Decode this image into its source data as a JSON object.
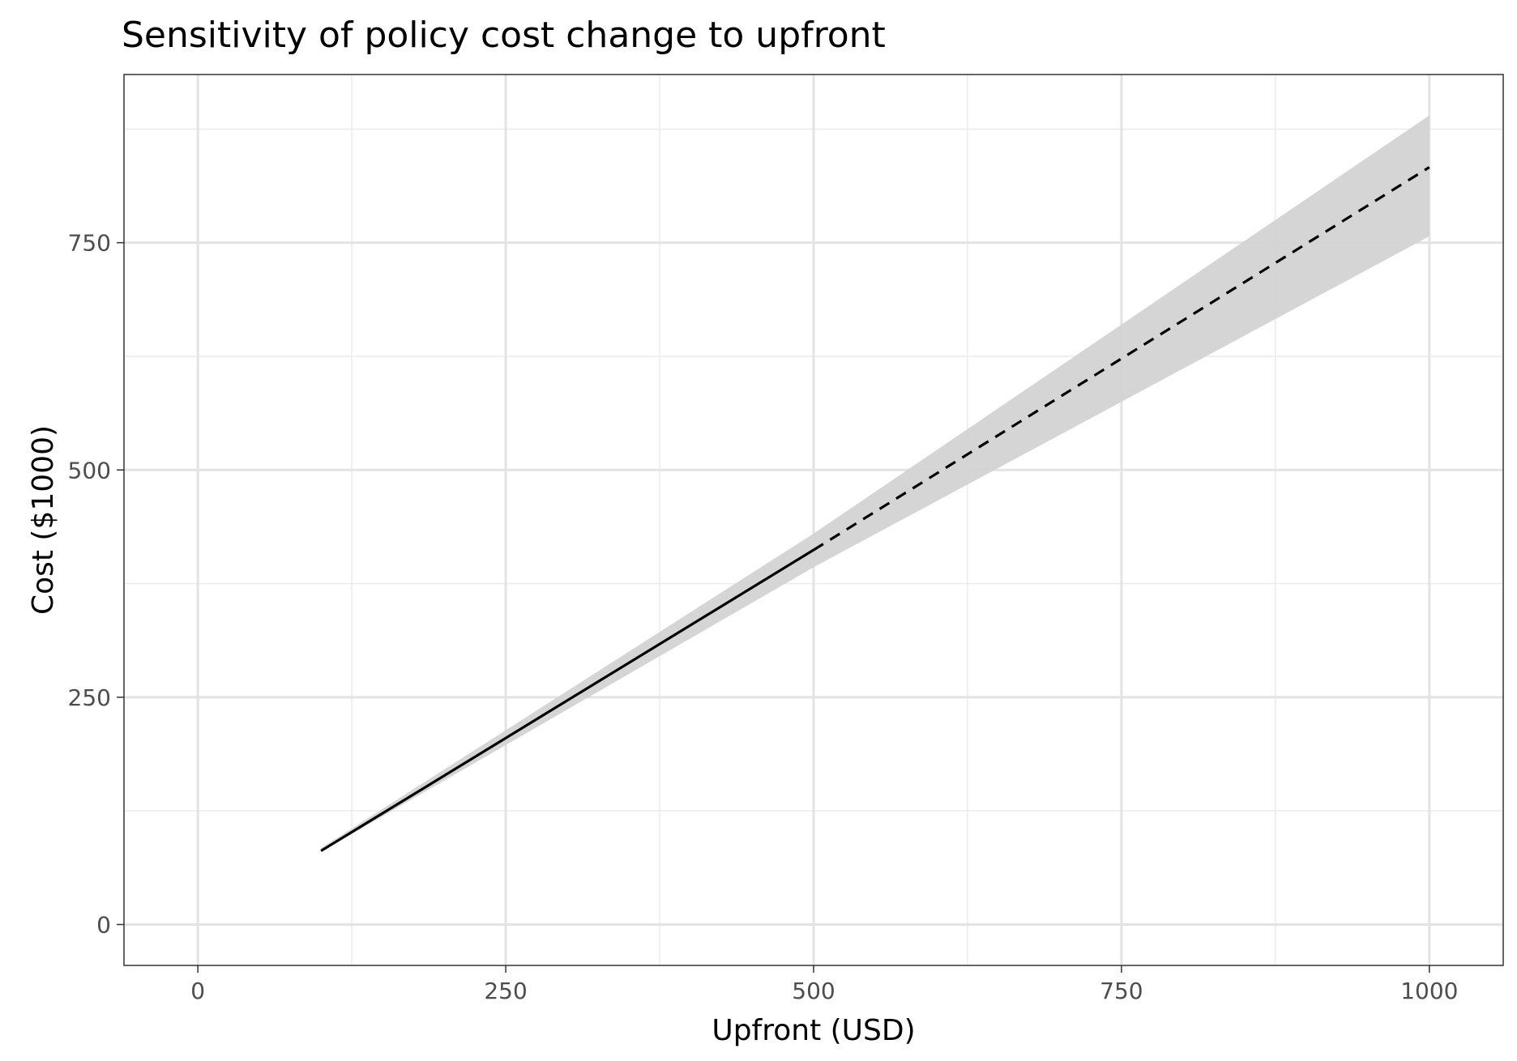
{
  "chart_data": {
    "type": "line",
    "title": "Sensitivity of policy cost change to upfront",
    "xlabel": "Upfront (USD)",
    "ylabel": "Cost ($1000)",
    "xlim": [
      -60,
      1060
    ],
    "ylim": [
      -45,
      935
    ],
    "x_ticks": [
      0,
      250,
      500,
      750,
      1000
    ],
    "y_ticks": [
      0,
      250,
      500,
      750
    ],
    "x_tick_labels": [
      "0",
      "250",
      "500",
      "750",
      "1000"
    ],
    "y_tick_labels": [
      "0",
      "250",
      "500",
      "750"
    ],
    "x_minor": [
      125,
      375,
      625,
      875
    ],
    "y_minor": [
      125,
      375,
      625,
      875
    ],
    "grid": true,
    "series": [
      {
        "style": "solid",
        "color": "#000000",
        "x": [
          100,
          500
        ],
        "y": [
          81,
          412
        ]
      },
      {
        "style": "dashed",
        "color": "#000000",
        "x": [
          500,
          1000
        ],
        "y": [
          412,
          833
        ]
      }
    ],
    "ribbon": {
      "color": "#d3d3d3",
      "x": [
        100,
        500,
        1000
      ],
      "lower": [
        80,
        393,
        757
      ],
      "upper": [
        84,
        430,
        890
      ]
    }
  }
}
